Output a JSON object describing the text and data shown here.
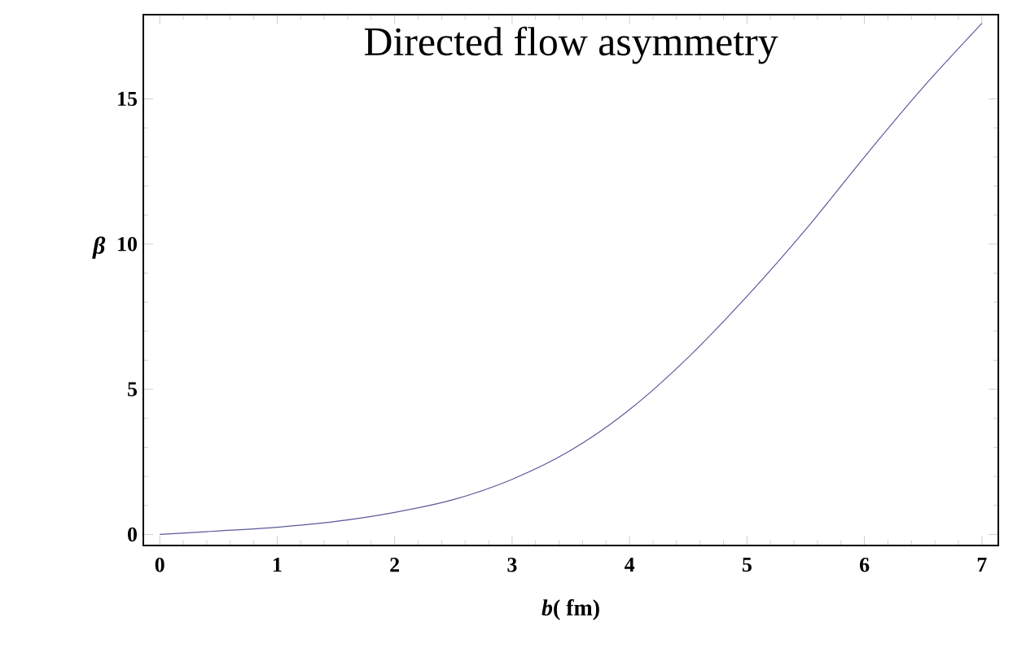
{
  "chart_data": {
    "type": "line",
    "title": "Directed flow asymmetry",
    "xlabel": "*b*( fm)",
    "ylabel": "β",
    "x": [
      0,
      0.5,
      1,
      1.5,
      2,
      2.5,
      3,
      3.5,
      4,
      4.5,
      5,
      5.5,
      6,
      6.5,
      7
    ],
    "series": [
      {
        "color": "#5a5a9a",
        "values": [
          0,
          0.12,
          0.25,
          0.45,
          0.76,
          1.2,
          1.9,
          2.9,
          4.3,
          6.1,
          8.2,
          10.5,
          13.0,
          15.4,
          17.6
        ]
      }
    ],
    "xlim": [
      -0.14,
      7.14
    ],
    "ylim": [
      -0.38,
      17.9
    ],
    "xticks": [
      0,
      1,
      2,
      3,
      4,
      5,
      6,
      7
    ],
    "yticks": [
      0,
      5,
      10,
      15
    ],
    "marker": "none",
    "line_style": "solid"
  }
}
